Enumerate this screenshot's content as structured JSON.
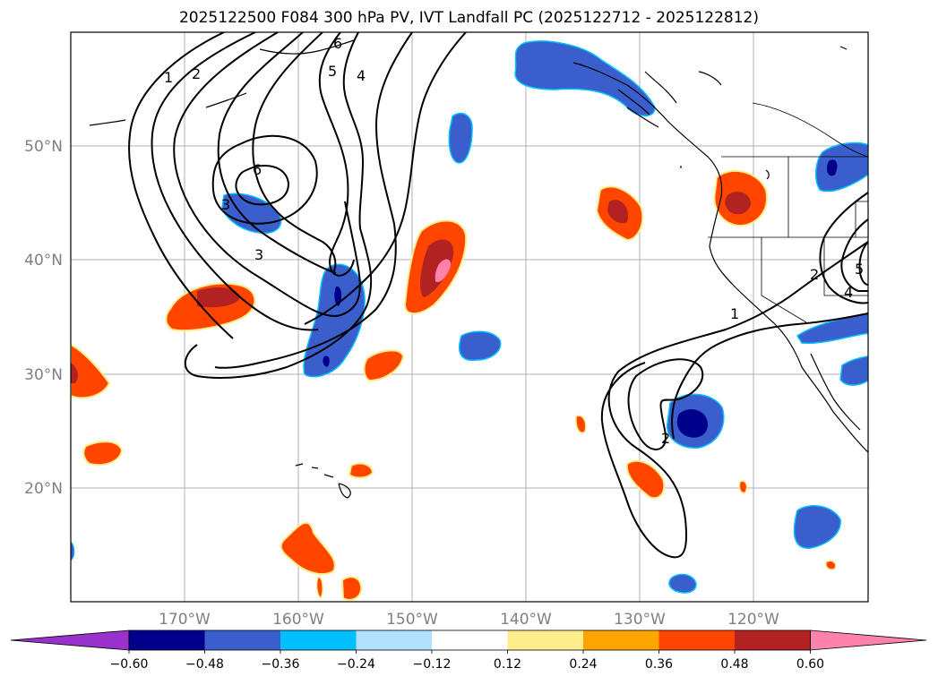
{
  "title": "2025122500 F084 300 hPa PV, IVT Landfall PC (2025122712 - 2025122812)",
  "lat_labels": [
    "50°N",
    "40°N",
    "30°N",
    "20°N"
  ],
  "lon_labels": [
    "170°W",
    "160°W",
    "150°W",
    "140°W",
    "130°W",
    "120°W"
  ],
  "colorbar": {
    "colors": [
      "#9932CC",
      "#00008B",
      "#3A5FCD",
      "#00BFFF",
      "#B0E2FF",
      "#FFFFFF",
      "#FFEC8B",
      "#FFA500",
      "#FF4500",
      "#B22222",
      "#FF82AB"
    ],
    "ticks": [
      "−0.60",
      "−0.48",
      "−0.36",
      "−0.24",
      "−0.12",
      "0.12",
      "0.24",
      "0.36",
      "0.48",
      "0.60"
    ]
  },
  "contour_labels": [
    "1",
    "2",
    "3",
    "4",
    "5",
    "6",
    "6",
    "3",
    "2",
    "1",
    "2",
    "4",
    "5"
  ]
}
